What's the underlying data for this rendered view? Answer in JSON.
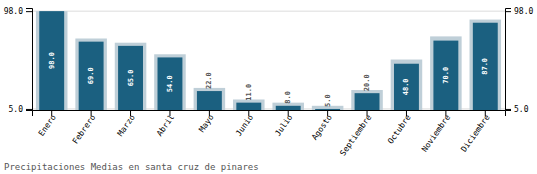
{
  "chart_data": {
    "type": "bar",
    "title": "Precipitaciones Medias en santa cruz de pinares",
    "categories": [
      "Enero",
      "Febrero",
      "Marzo",
      "Abril",
      "Mayo",
      "Junio",
      "Julio",
      "Agosto",
      "Septiembre",
      "Octubre",
      "Noviembre",
      "Diciembre"
    ],
    "series": [
      {
        "color": "#bfcfd8",
        "values": [
          98.0,
          72.0,
          68.0,
          57.0,
          25.0,
          14.0,
          11.0,
          8.0,
          23.0,
          52.0,
          74.0,
          90.0
        ]
      },
      {
        "color": "#1b6080",
        "values": [
          98.0,
          69.0,
          65.0,
          54.0,
          22.0,
          11.0,
          8.0,
          5.0,
          20.0,
          48.0,
          70.0,
          87.0
        ],
        "data_labels": true,
        "value_labels": [
          "98.0",
          "69.0",
          "65.0",
          "54.0",
          "22.0",
          "11.0",
          "8.0",
          "5.0",
          "20.0",
          "48.0",
          "70.0",
          "87.0"
        ]
      }
    ],
    "ylim": [
      4,
      101
    ],
    "yticks": [
      {
        "value": 5,
        "label": "5.0"
      },
      {
        "value": 98,
        "label": "98.0"
      }
    ],
    "y2lim": [
      4,
      101
    ],
    "y2ticks": [
      {
        "value": 5,
        "label": "5.0"
      },
      {
        "value": 98,
        "label": "98.0"
      }
    ],
    "grid": true
  }
}
